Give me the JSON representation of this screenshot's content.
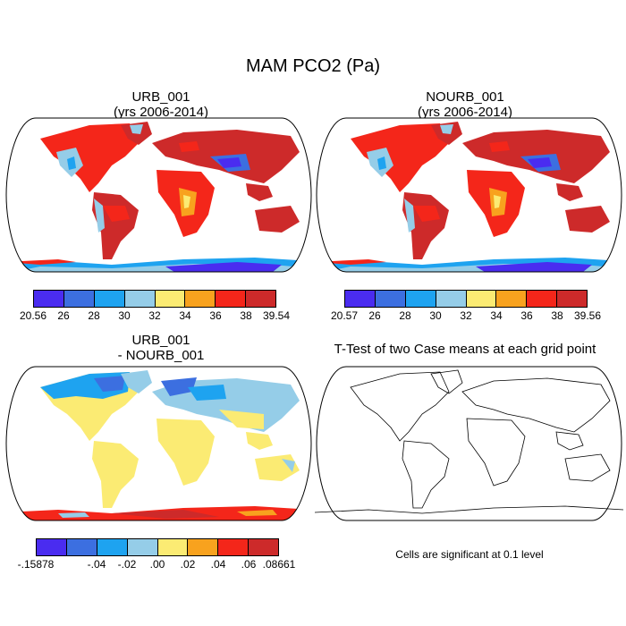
{
  "title": "MAM PCO2 (Pa)",
  "panels": [
    {
      "id": "urb",
      "title_line1": "URB_001",
      "title_line2": "(yrs 2006-2014)",
      "colorbar": {
        "colors": [
          "#4a2cf0",
          "#3c6fe0",
          "#1ea3f0",
          "#95cde8",
          "#fbeb73",
          "#f8a21e",
          "#f4261a",
          "#cd2a2a"
        ],
        "labels": [
          "20.56",
          "26",
          "28",
          "30",
          "32",
          "34",
          "36",
          "38",
          "39.54"
        ]
      }
    },
    {
      "id": "nourb",
      "title_line1": "NOURB_001",
      "title_line2": "(yrs 2006-2014)",
      "colorbar": {
        "colors": [
          "#4a2cf0",
          "#3c6fe0",
          "#1ea3f0",
          "#95cde8",
          "#fbeb73",
          "#f8a21e",
          "#f4261a",
          "#cd2a2a"
        ],
        "labels": [
          "20.57",
          "26",
          "28",
          "30",
          "32",
          "34",
          "36",
          "38",
          "39.56"
        ]
      }
    },
    {
      "id": "diff",
      "title_line1": "URB_001",
      "title_line2": "- NOURB_001",
      "colorbar": {
        "colors": [
          "#4a2cf0",
          "#3c6fe0",
          "#1ea3f0",
          "#95cde8",
          "#fbeb73",
          "#f8a21e",
          "#f4261a",
          "#cd2a2a"
        ],
        "labels": [
          "-.15878",
          "",
          "-.04",
          "-.02",
          ".00",
          ".02",
          ".04",
          ".06",
          ".08661"
        ]
      }
    },
    {
      "id": "ttest",
      "title_line1": "T-Test of two Case means at each grid point"
    }
  ],
  "note": "Cells are significant at 0.1 level"
}
